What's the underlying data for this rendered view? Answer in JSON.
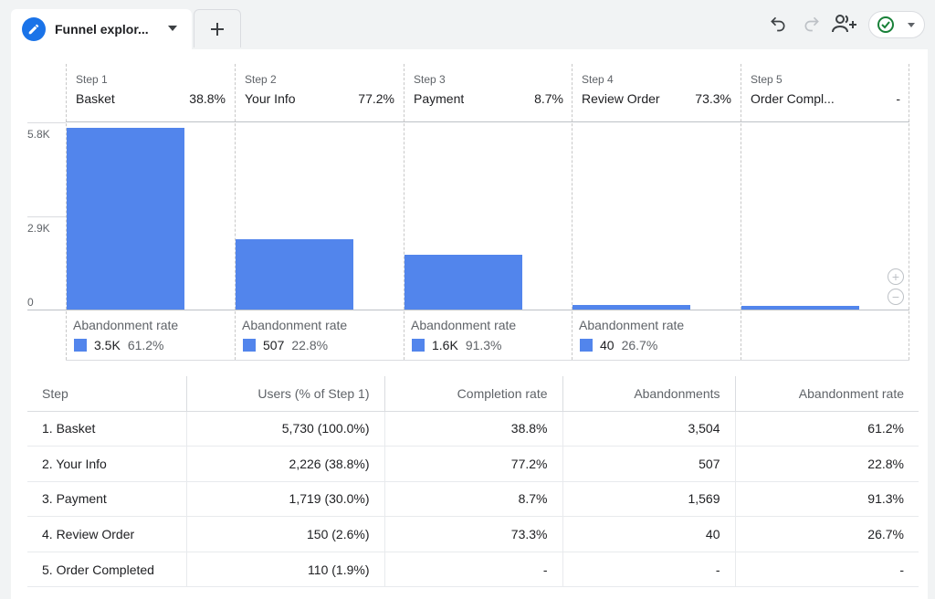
{
  "tab": {
    "title": "Funnel explor...",
    "icon": "pencil-icon"
  },
  "toolbar": {
    "icons": [
      "undo-icon",
      "redo-icon",
      "share-users-icon",
      "check-circle-icon"
    ]
  },
  "colors": {
    "accent": "#1a73e8",
    "bar": "#5285ec",
    "status_ok": "#188038"
  },
  "chart_data": {
    "type": "bar",
    "ymax": 5.8,
    "yticks": [
      "5.8K",
      "2.9K",
      "0"
    ],
    "steps": [
      {
        "step": "Step 1",
        "name": "Basket",
        "rate": "38.8%",
        "value": 5730,
        "abandon_title": "Abandonment rate",
        "abandon_count": "3.5K",
        "abandon_rate": "61.2%"
      },
      {
        "step": "Step 2",
        "name": "Your Info",
        "rate": "77.2%",
        "value": 2226,
        "abandon_title": "Abandonment rate",
        "abandon_count": "507",
        "abandon_rate": "22.8%"
      },
      {
        "step": "Step 3",
        "name": "Payment",
        "rate": "8.7%",
        "value": 1719,
        "abandon_title": "Abandonment rate",
        "abandon_count": "1.6K",
        "abandon_rate": "91.3%"
      },
      {
        "step": "Step 4",
        "name": "Review Order",
        "rate": "73.3%",
        "value": 150,
        "abandon_title": "Abandonment rate",
        "abandon_count": "40",
        "abandon_rate": "26.7%"
      },
      {
        "step": "Step 5",
        "name": "Order Compl...",
        "rate": "-",
        "value": 110
      }
    ]
  },
  "zoom": {
    "in_label": "+",
    "out_label": "−"
  },
  "table": {
    "headers": [
      "Step",
      "Users (% of Step 1)",
      "Completion rate",
      "Abandonments",
      "Abandonment rate"
    ],
    "rows": [
      [
        "1. Basket",
        "5,730 (100.0%)",
        "38.8%",
        "3,504",
        "61.2%"
      ],
      [
        "2. Your Info",
        "2,226 (38.8%)",
        "77.2%",
        "507",
        "22.8%"
      ],
      [
        "3. Payment",
        "1,719 (30.0%)",
        "8.7%",
        "1,569",
        "91.3%"
      ],
      [
        "4. Review Order",
        "150 (2.6%)",
        "73.3%",
        "40",
        "26.7%"
      ],
      [
        "5. Order Completed",
        "110 (1.9%)",
        "-",
        "-",
        "-"
      ]
    ]
  }
}
